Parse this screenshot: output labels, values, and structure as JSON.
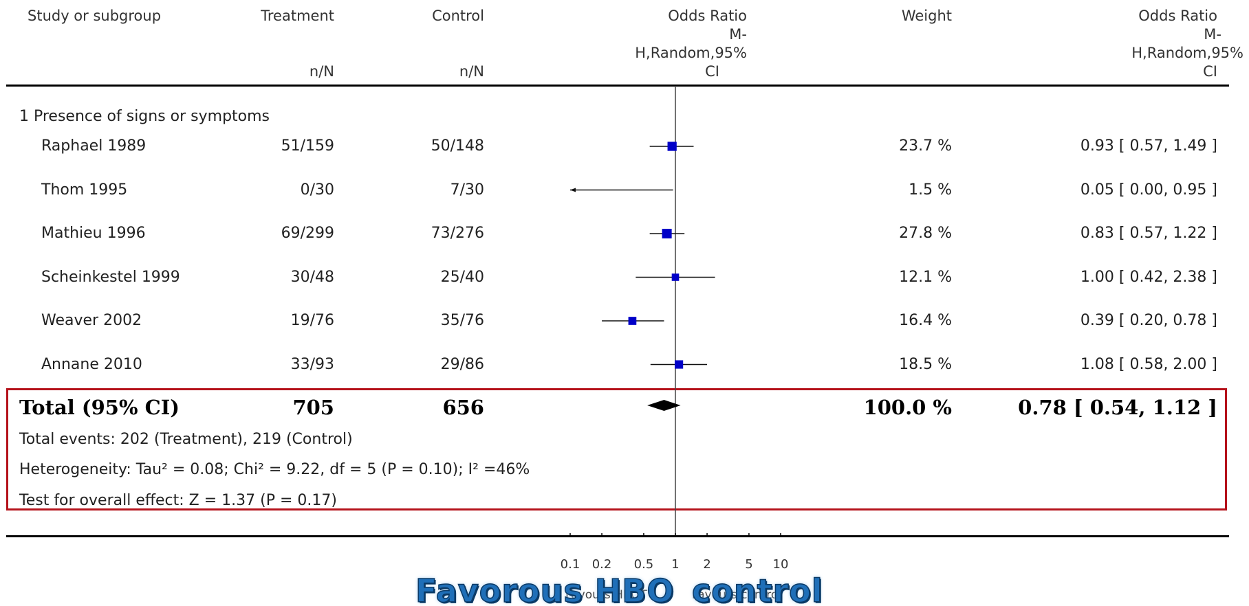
{
  "headers": {
    "study": "Study or subgroup",
    "treatment": "Treatment",
    "treatment_unit": "n/N",
    "control": "Control",
    "control_unit": "n/N",
    "plot_col": [
      "Odds Ratio",
      "M-",
      "H,Random,95%",
      "CI"
    ],
    "weight": "Weight",
    "or_col": [
      "Odds Ratio",
      "M-",
      "H,Random,95%",
      "CI"
    ]
  },
  "subgroup_label": "1 Presence of signs or symptoms",
  "total": {
    "label": "Total (95% CI)",
    "treatment": "705",
    "control": "656",
    "weight": "100.0 %",
    "or_text": "0.78 [ 0.54, 1.12 ]",
    "events": "Total events: 202 (Treatment), 219 (Control)",
    "heterogeneity": "Heterogeneity: Tau² = 0.08; Chi² = 9.22, df = 5 (P = 0.10); I² =46%",
    "overall_effect": "Test for overall effect: Z = 1.37 (P = 0.17)"
  },
  "footer": {
    "left_small": "Favours HBOT",
    "right_small": "Favours control",
    "left_overlay": "Favorous HBO",
    "right_overlay": "control"
  },
  "colors": {
    "marker": "#0000c8",
    "highlight_box": "#b5121b",
    "overlay_text": "#1f6fb8"
  },
  "chart_data": {
    "type": "forest",
    "scale": "log",
    "xlim": [
      0.1,
      10
    ],
    "ticks": [
      "0.1",
      "0.2",
      "0.5",
      "1",
      "2",
      "5",
      "10"
    ],
    "tick_values": [
      0.1,
      0.2,
      0.5,
      1,
      2,
      5,
      10
    ],
    "studies": [
      {
        "name": "Raphael 1989",
        "treatment": "51/159",
        "control": "50/148",
        "weight": 23.7,
        "weight_text": "23.7 %",
        "or": 0.93,
        "lo": 0.57,
        "hi": 1.49,
        "or_text": "0.93 [ 0.57, 1.49 ]"
      },
      {
        "name": "Thom 1995",
        "treatment": "0/30",
        "control": "7/30",
        "weight": 1.5,
        "weight_text": "1.5 %",
        "or": 0.05,
        "lo": 0.0,
        "hi": 0.95,
        "or_text": "0.05 [ 0.00, 0.95 ]"
      },
      {
        "name": "Mathieu 1996",
        "treatment": "69/299",
        "control": "73/276",
        "weight": 27.8,
        "weight_text": "27.8 %",
        "or": 0.83,
        "lo": 0.57,
        "hi": 1.22,
        "or_text": "0.83 [ 0.57, 1.22 ]"
      },
      {
        "name": "Scheinkestel 1999",
        "treatment": "30/48",
        "control": "25/40",
        "weight": 12.1,
        "weight_text": "12.1 %",
        "or": 1.0,
        "lo": 0.42,
        "hi": 2.38,
        "or_text": "1.00 [ 0.42, 2.38 ]"
      },
      {
        "name": "Weaver 2002",
        "treatment": "19/76",
        "control": "35/76",
        "weight": 16.4,
        "weight_text": "16.4 %",
        "or": 0.39,
        "lo": 0.2,
        "hi": 0.78,
        "or_text": "0.39 [ 0.20, 0.78 ]"
      },
      {
        "name": "Annane 2010",
        "treatment": "33/93",
        "control": "29/86",
        "weight": 18.5,
        "weight_text": "18.5 %",
        "or": 1.08,
        "lo": 0.58,
        "hi": 2.0,
        "or_text": "1.08 [ 0.58, 2.00 ]"
      }
    ],
    "pooled": {
      "or": 0.78,
      "lo": 0.54,
      "hi": 1.12
    }
  }
}
